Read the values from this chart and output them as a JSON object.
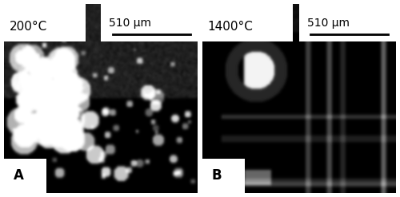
{
  "fig_width": 5.0,
  "fig_height": 2.47,
  "dpi": 100,
  "bg_color": "#ffffff",
  "border_color": "#000000",
  "panel_A": {
    "label": "A",
    "temp_label": "200°C",
    "scale_label": "510 μm",
    "label_box_color": "#ffffff",
    "text_color": "#000000"
  },
  "panel_B": {
    "label": "B",
    "temp_label": "1400°C",
    "scale_label": "510 μm",
    "label_box_color": "#ffffff",
    "text_color": "#000000"
  },
  "scale_bar_color": "#000000",
  "label_fontsize": 11,
  "temp_fontsize": 11,
  "scale_fontsize": 10,
  "panel_letter_fontsize": 12
}
